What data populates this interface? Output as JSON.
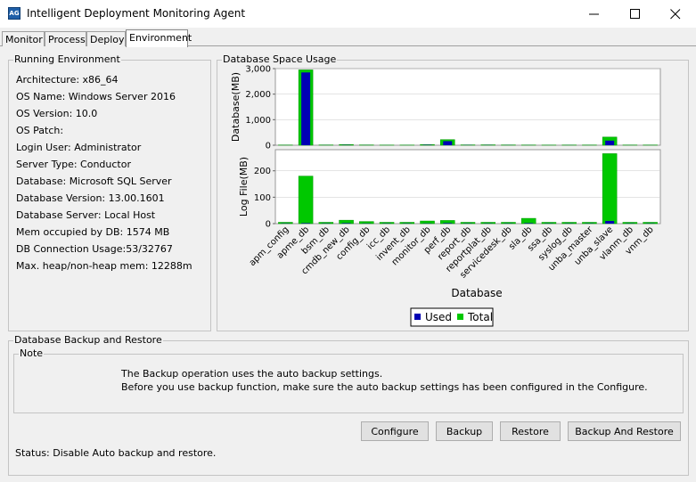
{
  "window": {
    "title": "Intelligent Deployment Monitoring Agent",
    "icon_label": "AG",
    "controls": [
      "minimize-icon",
      "maximize-icon",
      "close-icon"
    ]
  },
  "tabs": [
    {
      "label": "Monitor",
      "active": false
    },
    {
      "label": "Process",
      "active": false
    },
    {
      "label": "Deploy",
      "active": false
    },
    {
      "label": "Environment",
      "active": true
    }
  ],
  "running_env": {
    "title": "Running Environment",
    "lines": [
      "Architecture: x86_64",
      "OS Name: Windows Server 2016",
      "OS Version: 10.0",
      "OS Patch:",
      "Login User: Administrator",
      "Server Type: Conductor",
      "Database: Microsoft SQL Server",
      "Database Version: 13.00.1601",
      "Database Server: Local Host",
      "Mem occupied by DB: 1574 MB",
      "DB Connection Usage:53/32767",
      "Max. heap/non-heap mem:  12288m"
    ]
  },
  "db_space": {
    "title": "Database Space Usage"
  },
  "chart_data": {
    "type": "bar",
    "xlabel": "Database",
    "categories": [
      "apm_config",
      "apme_db",
      "bsm_db",
      "cmdb_new_db",
      "config_db",
      "icc_db",
      "invent_db",
      "monitor_db",
      "perf_db",
      "report_db",
      "reportplat_db",
      "servicedesk_db",
      "sla_db",
      "ssa_db",
      "syslog_db",
      "unba_master",
      "unba_slave",
      "vlanm_db",
      "vnm_db"
    ],
    "legend": {
      "placement": "bottom",
      "entries": [
        "Used",
        "Total"
      ]
    },
    "colors": {
      "used": "#0000b4",
      "total": "#00c800"
    },
    "panels": [
      {
        "ylabel": "Database(MB)",
        "ylim": [
          0,
          3000
        ],
        "yticks": [
          0,
          1000,
          2000,
          3000
        ],
        "ytick_labels": [
          "0",
          "1,000",
          "2,000",
          "3,000"
        ],
        "series": [
          {
            "name": "Used",
            "values": [
              2,
              2850,
              3,
              8,
              3,
              2,
              2,
              12,
              160,
              6,
              6,
              4,
              3,
              2,
              3,
              2,
              180,
              2,
              2
            ]
          },
          {
            "name": "Total",
            "values": [
              10,
              2950,
              12,
              25,
              12,
              8,
              8,
              24,
              220,
              14,
              16,
              12,
              10,
              8,
              10,
              10,
              320,
              10,
              10
            ]
          }
        ]
      },
      {
        "ylabel": "Log File(MB)",
        "ylim": [
          0,
          280
        ],
        "yticks": [
          0,
          100,
          200
        ],
        "ytick_labels": [
          "0",
          "100",
          "200"
        ],
        "series": [
          {
            "name": "Used",
            "values": [
              1,
              2,
              1,
              2,
              1,
              1,
              1,
              1,
              2,
              1,
              1,
              1,
              2,
              1,
              1,
              1,
              10,
              1,
              1
            ]
          },
          {
            "name": "Total",
            "values": [
              5,
              180,
              5,
              13,
              8,
              5,
              5,
              10,
              12,
              5,
              5,
              5,
              20,
              5,
              5,
              5,
              265,
              5,
              5
            ]
          }
        ]
      }
    ]
  },
  "backup": {
    "title": "Database Backup and Restore",
    "note_title": "Note",
    "note_line1": "The Backup operation uses the auto backup settings.",
    "note_line2": "Before you use backup function, make sure the auto backup settings has been configured in the Configure.",
    "buttons": {
      "configure": "Configure",
      "backup": "Backup",
      "restore": "Restore",
      "backup_and_restore": "Backup And Restore"
    },
    "status": "Status: Disable Auto backup and restore."
  }
}
